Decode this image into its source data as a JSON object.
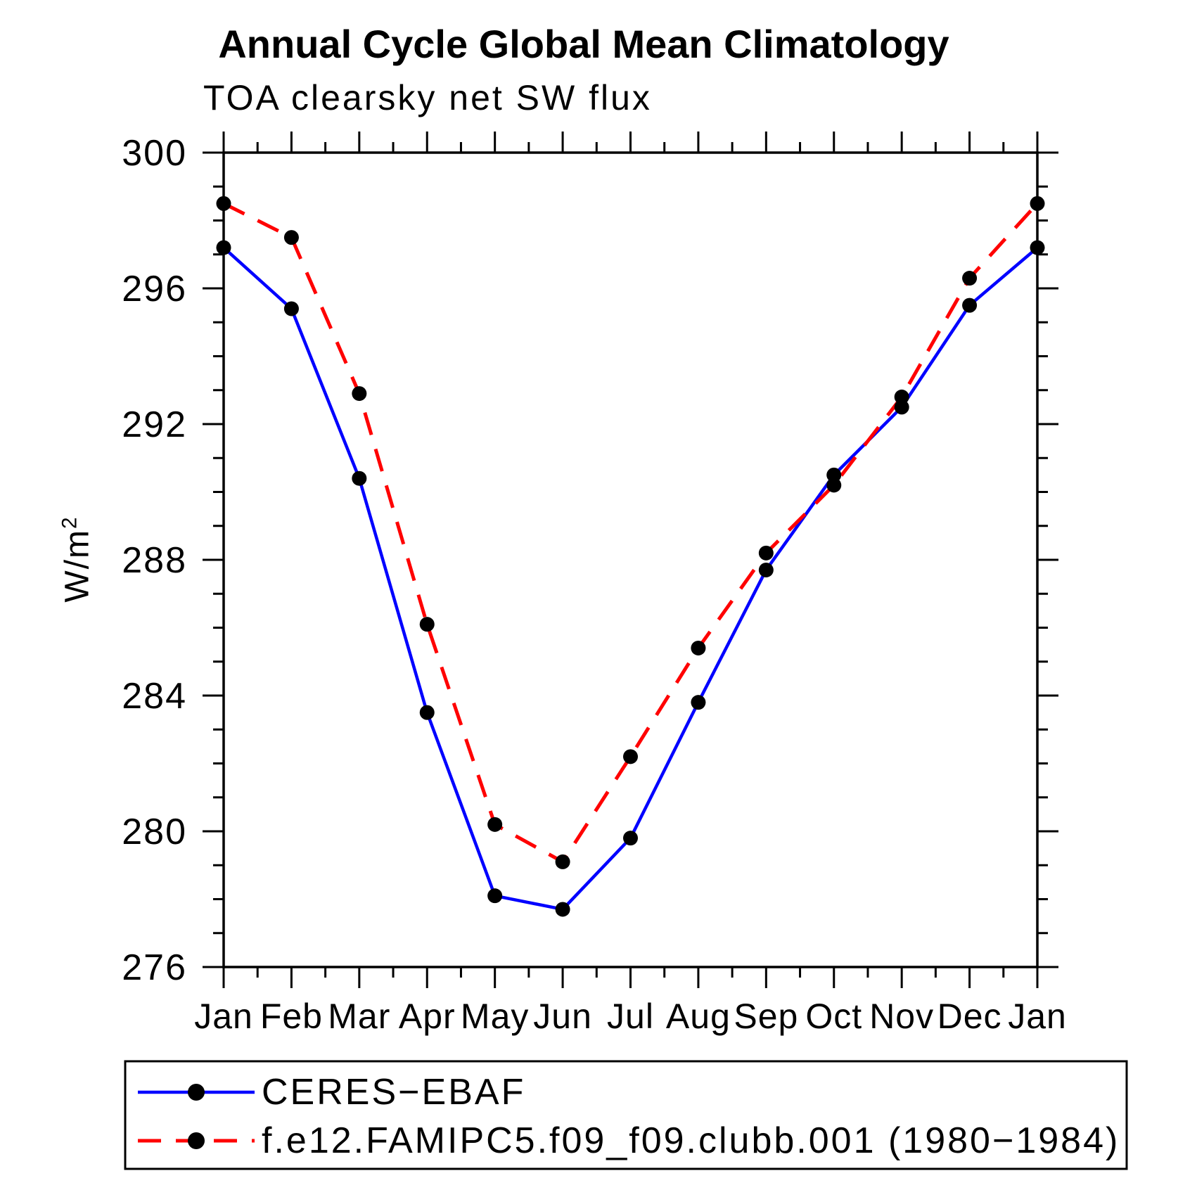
{
  "header": {
    "title": "Annual Cycle Global Mean Climatology",
    "subtitle": "TOA clearsky net SW flux"
  },
  "chart_data": {
    "type": "line",
    "title": "Annual Cycle Global Mean Climatology",
    "subtitle": "TOA clearsky net SW flux",
    "ylabel_base": "W/m",
    "ylabel_sup": "2",
    "ylim": [
      276,
      300
    ],
    "ytick_major_step": 4,
    "ytick_minor_step": 1,
    "xtick_minor_per_interval": 1,
    "grid": false,
    "axis_color": "#000000",
    "marker_color": "#000000",
    "legend_position": "bottom-left-box",
    "categories": [
      "Jan",
      "Feb",
      "Mar",
      "Apr",
      "May",
      "Jun",
      "Jul",
      "Aug",
      "Sep",
      "Oct",
      "Nov",
      "Dec",
      "Jan"
    ],
    "series": [
      {
        "name": "CERES−EBAF",
        "line_style": "solid",
        "color": "#0000ff",
        "marker": "circle",
        "values": [
          297.2,
          295.4,
          290.4,
          283.5,
          278.1,
          277.7,
          279.8,
          283.8,
          287.7,
          290.5,
          292.5,
          295.5,
          297.2
        ]
      },
      {
        "name": "f.e12.FAMIPC5.f09_f09.clubb.001 (1980−1984)",
        "line_style": "dashed",
        "color": "#ff0000",
        "marker": "circle",
        "values": [
          298.5,
          297.5,
          292.9,
          286.1,
          280.2,
          279.1,
          282.2,
          285.4,
          288.2,
          290.2,
          292.8,
          296.3,
          298.5
        ]
      }
    ]
  }
}
